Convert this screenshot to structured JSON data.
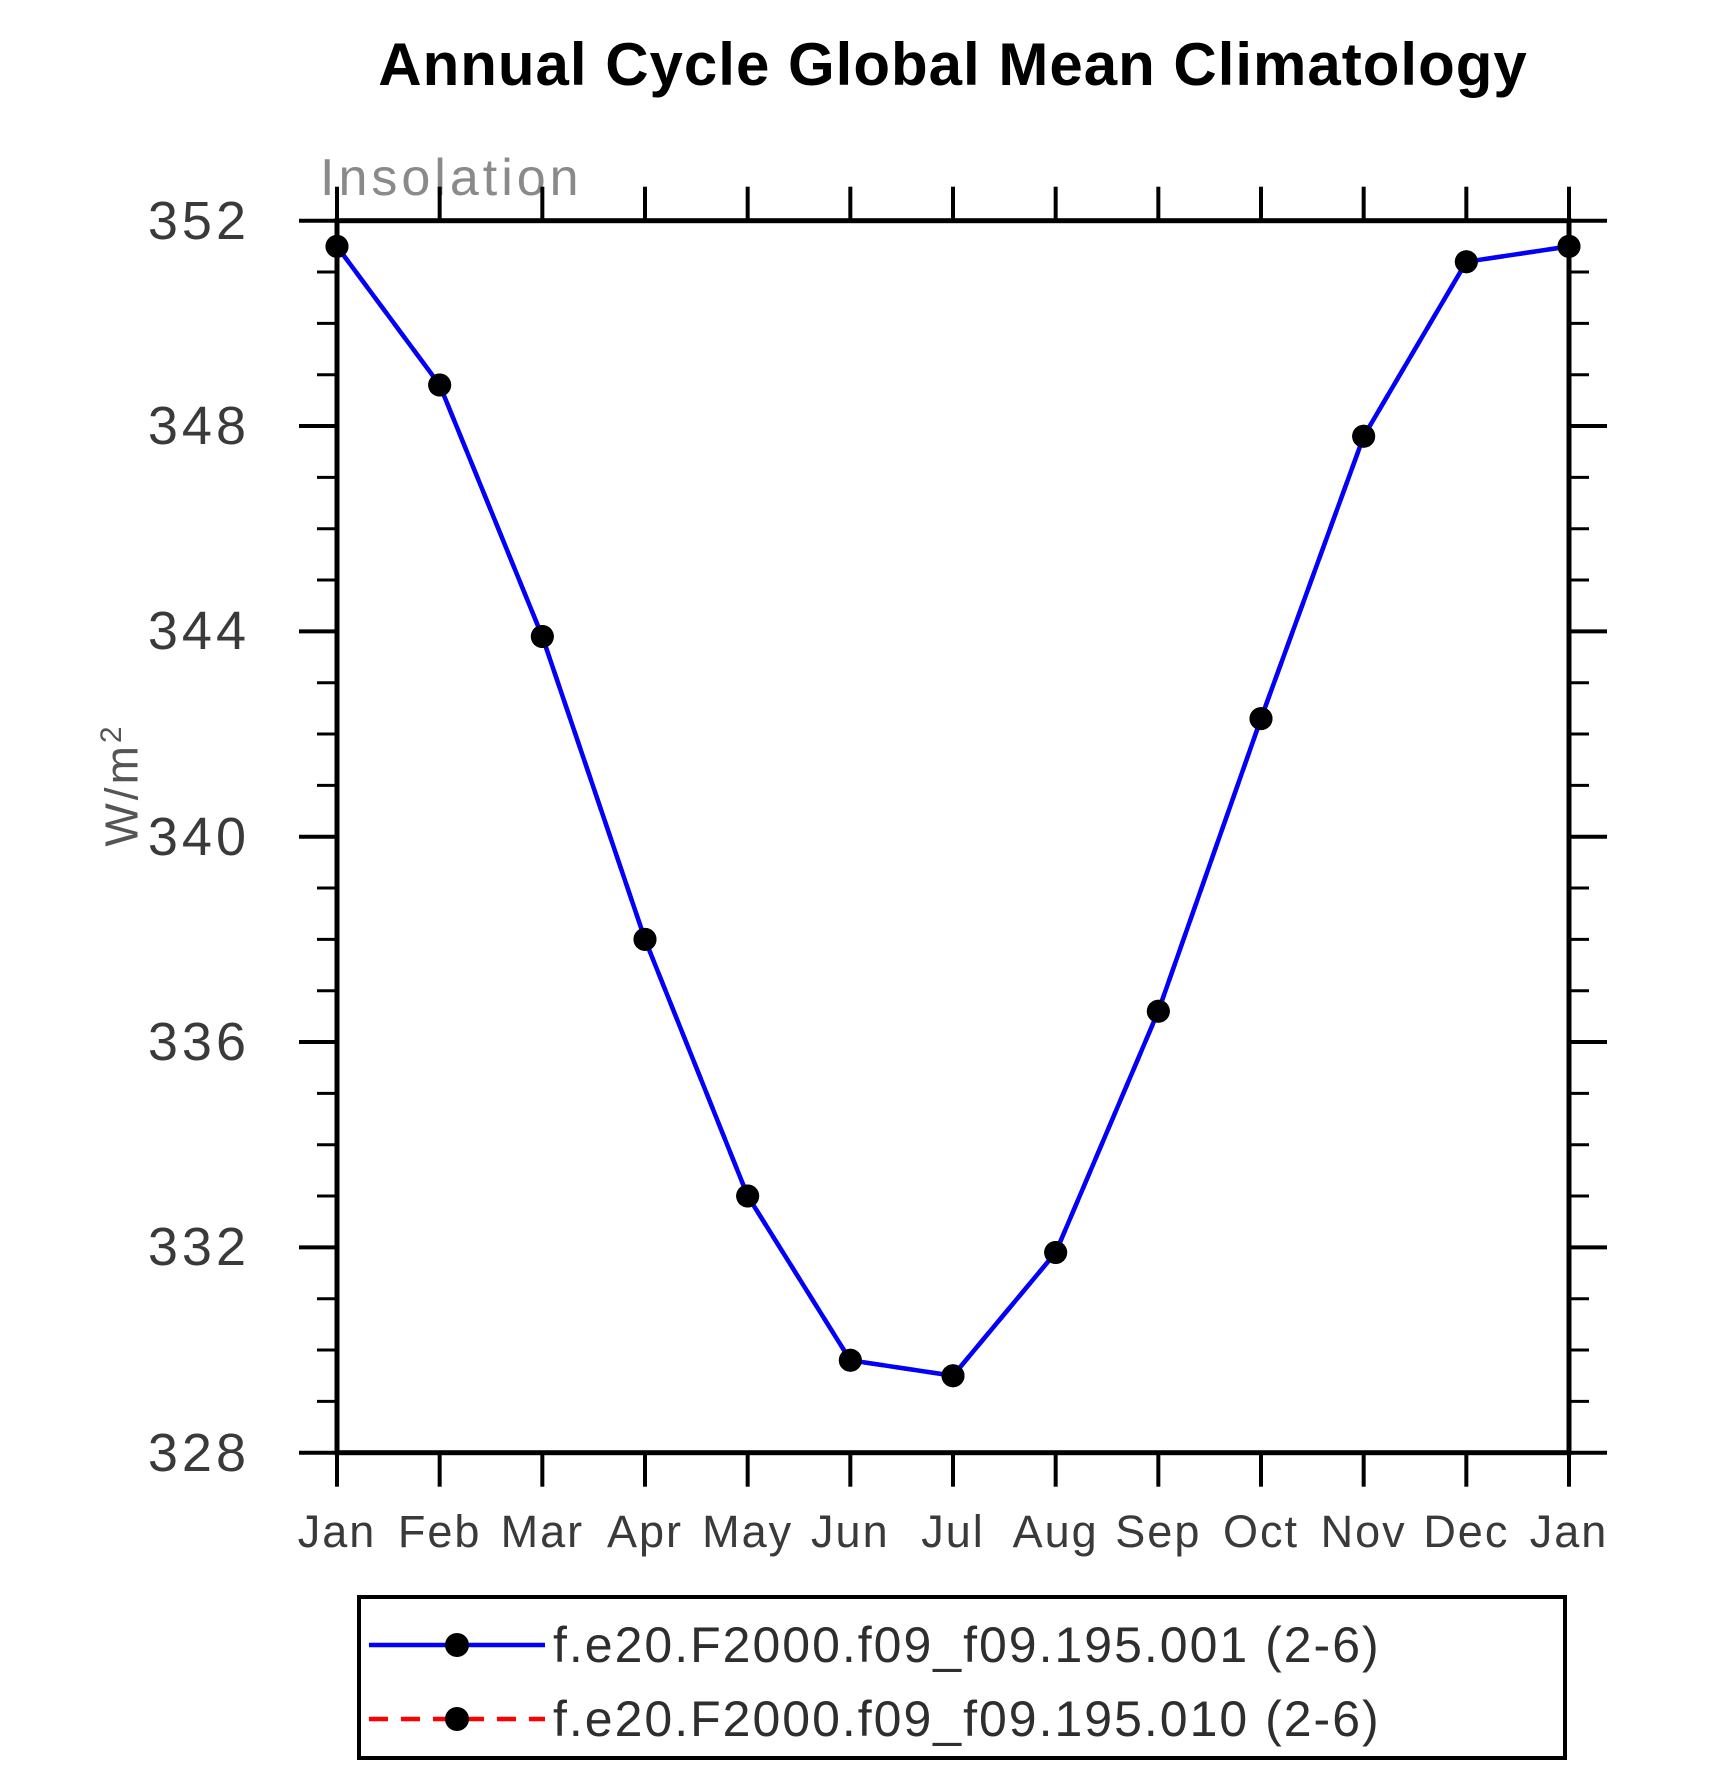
{
  "chart_data": {
    "type": "line",
    "title": "Annual Cycle Global Mean Climatology",
    "left_string": "Insolation",
    "ylabel": "W/m²",
    "ylabel_base": "W/m",
    "ylabel_sup": "2",
    "xlabel": "",
    "categories": [
      "Jan",
      "Feb",
      "Mar",
      "Apr",
      "May",
      "Jun",
      "Jul",
      "Aug",
      "Sep",
      "Oct",
      "Nov",
      "Dec",
      "Jan"
    ],
    "ylim": [
      328,
      352
    ],
    "ytick_major": [
      352,
      348,
      344,
      340,
      336,
      332,
      328
    ],
    "ytick_minor_step": 1,
    "grid": false,
    "legend_position": "bottom",
    "series": [
      {
        "name": "f.e20.F2000.f09_f09.195.001 (2-6)",
        "color": "#0000ff",
        "style": "solid",
        "marker": "filled-circle",
        "marker_color": "#000000",
        "values": [
          351.5,
          348.8,
          343.9,
          338.0,
          333.0,
          329.8,
          329.5,
          331.9,
          336.6,
          342.3,
          347.8,
          351.2,
          351.5
        ]
      },
      {
        "name": "f.e20.F2000.f09_f09.195.010 (2-6)",
        "color": "#ff0000",
        "style": "dashed",
        "marker": "filled-circle",
        "marker_color": "#000000",
        "values": [
          351.5,
          348.8,
          343.9,
          338.0,
          333.0,
          329.8,
          329.5,
          331.9,
          336.6,
          342.3,
          347.8,
          351.2,
          351.5
        ]
      }
    ]
  }
}
